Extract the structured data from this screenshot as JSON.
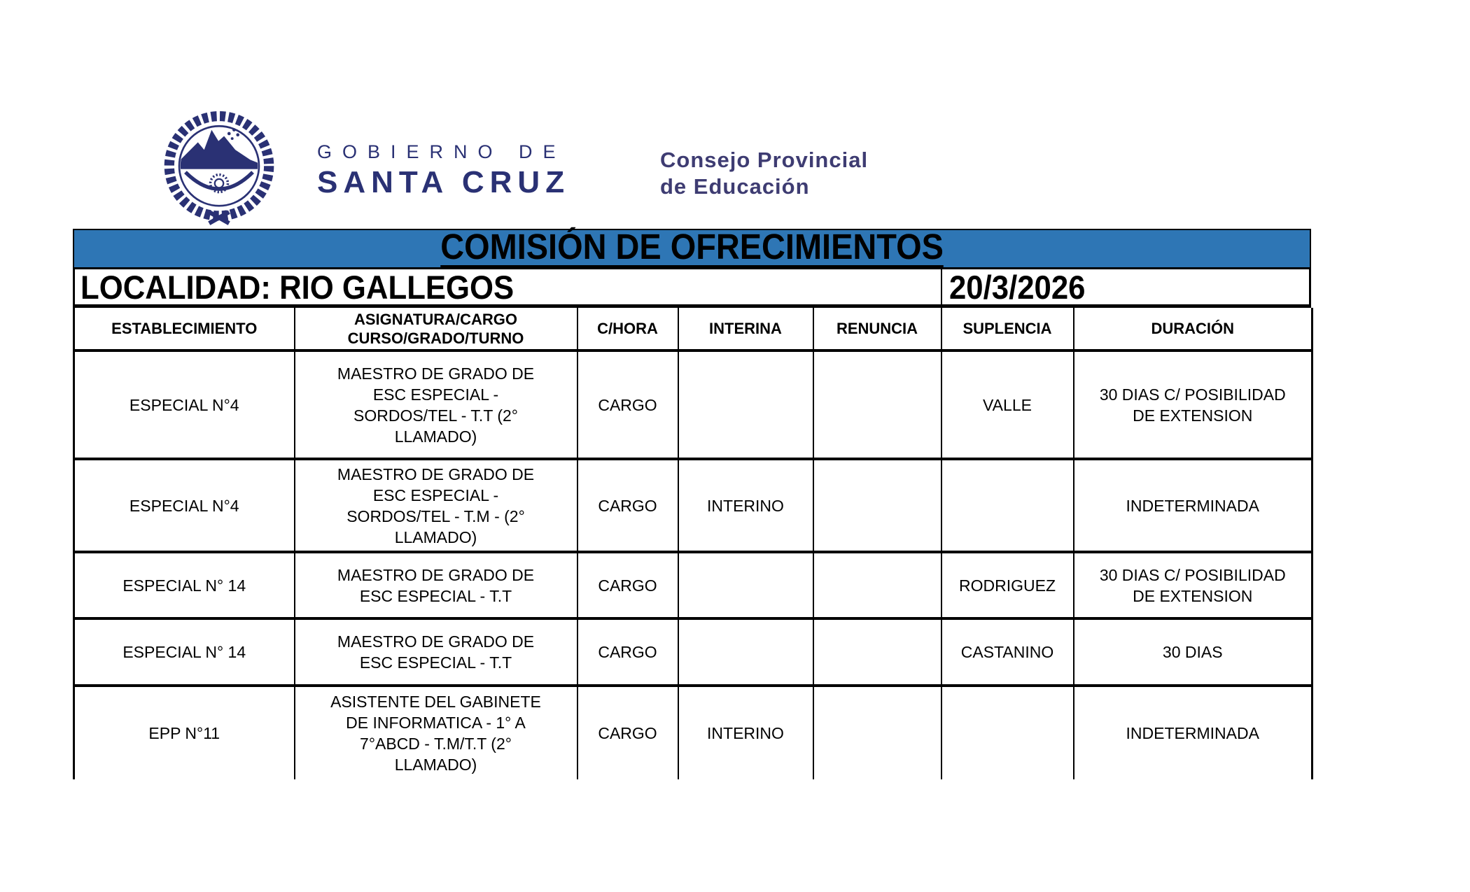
{
  "brand": {
    "government_line1": "GOBIERNO DE",
    "government_line2": "SANTA CRUZ",
    "council_line1": "Consejo Provincial",
    "council_line2": "de Educación"
  },
  "banner": {
    "title": "COMISIÓN DE OFRECIMIENTOS"
  },
  "info": {
    "locality": "LOCALIDAD: RIO GALLEGOS",
    "date": "20/3/2026"
  },
  "table": {
    "headers": [
      "ESTABLECIMIENTO",
      "ASIGNATURA/CARGO\nCURSO/GRADO/TURNO",
      "C/HORA",
      "INTERINA",
      "RENUNCIA",
      "SUPLENCIA",
      "DURACIÓN"
    ],
    "rows": [
      {
        "establecimiento": "ESPECIAL N°4",
        "asignatura": "MAESTRO DE GRADO DE\nESC ESPECIAL -\nSORDOS/TEL - T.T (2°\nLLAMADO)",
        "c_hora": "CARGO",
        "interina": "",
        "renuncia": "",
        "suplencia": "VALLE",
        "duracion": "30 DIAS C/ POSIBILIDAD\nDE EXTENSION"
      },
      {
        "establecimiento": "ESPECIAL N°4",
        "asignatura": "MAESTRO DE GRADO DE\nESC ESPECIAL -\nSORDOS/TEL - T.M - (2°\nLLAMADO)",
        "c_hora": "CARGO",
        "interina": "INTERINO",
        "renuncia": "",
        "suplencia": "",
        "duracion": "INDETERMINADA"
      },
      {
        "establecimiento": "ESPECIAL N° 14",
        "asignatura": "MAESTRO DE GRADO DE\nESC ESPECIAL - T.T",
        "c_hora": "CARGO",
        "interina": "",
        "renuncia": "",
        "suplencia": "RODRIGUEZ",
        "duracion": "30 DIAS C/ POSIBILIDAD\nDE EXTENSION"
      },
      {
        "establecimiento": "ESPECIAL N° 14",
        "asignatura": "MAESTRO DE GRADO DE\nESC ESPECIAL - T.T",
        "c_hora": "CARGO",
        "interina": "",
        "renuncia": "",
        "suplencia": "CASTANINO",
        "duracion": "30 DIAS"
      },
      {
        "establecimiento": "EPP N°11",
        "asignatura": "ASISTENTE DEL GABINETE\nDE  INFORMATICA - 1° A\n7°ABCD - T.M/T.T (2°\nLLAMADO)",
        "c_hora": "CARGO",
        "interina": "INTERINO",
        "renuncia": "",
        "suplencia": "",
        "duracion": "INDETERMINADA"
      }
    ]
  },
  "colors": {
    "banner_blue": "#2E76B5",
    "logo_navy": "#2A3174",
    "council_navy": "#3E3C72",
    "text_black": "#000000",
    "border_black": "#000000"
  },
  "icons": {
    "emblem": "santa-cruz-coat-of-arms-icon"
  }
}
